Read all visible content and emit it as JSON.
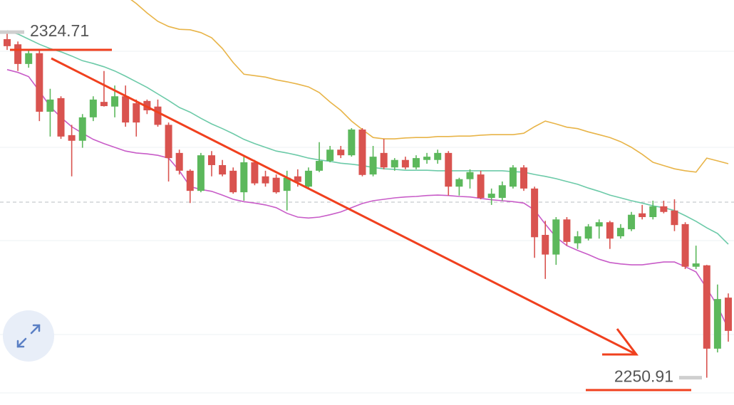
{
  "chart_data": {
    "type": "candlestick",
    "ylim": [
      2245.07,
      2331.56
    ],
    "up_color": "#5cb85c",
    "down_color": "#d9534f",
    "open": [
      2323.2,
      2322.1,
      2317.9,
      2320.2,
      2307.7,
      2310.6,
      2302.7,
      2301.5,
      2306.5,
      2309.8,
      2308.8,
      2311.0,
      2309.5,
      2310.0,
      2308.8,
      2304.9,
      2298.9,
      2295.1,
      2290.8,
      2298.4,
      2296.3,
      2295.1,
      2290.5,
      2296.9,
      2293.9,
      2293.6,
      2290.8,
      2293.9,
      2291.7,
      2295.1,
      2297.2,
      2299.6,
      2298.4,
      2303.9,
      2294.3,
      2298.9,
      2295.8,
      2297.4,
      2295.8,
      2297.4,
      2297.4,
      2298.9,
      2291.7,
      2293.3,
      2294.3,
      2289.3,
      2289.3,
      2291.7,
      2295.8,
      2291.3,
      2281.4,
      2277.2,
      2284.7,
      2279.6,
      2280.6,
      2283.2,
      2284.1,
      2281.1,
      2282.6,
      2286.0,
      2285.2,
      2287.5,
      2286.6,
      2283.7,
      2274.6,
      2274.9,
      2257.1,
      2268.0
    ],
    "high": [
      2324.71,
      2322.7,
      2320.9,
      2320.9,
      2312.6,
      2311.0,
      2304.9,
      2307.2,
      2311.0,
      2316.4,
      2313.3,
      2313.3,
      2310.3,
      2310.3,
      2310.3,
      2305.4,
      2299.6,
      2295.4,
      2298.9,
      2299.3,
      2297.4,
      2295.8,
      2298.1,
      2297.4,
      2295.1,
      2294.3,
      2295.1,
      2295.4,
      2295.8,
      2301.2,
      2300.4,
      2300.4,
      2304.2,
      2304.2,
      2300.4,
      2301.9,
      2297.8,
      2298.1,
      2298.4,
      2298.9,
      2299.6,
      2299.3,
      2293.6,
      2295.4,
      2295.1,
      2291.3,
      2292.8,
      2296.3,
      2296.3,
      2291.7,
      2284.4,
      2285.2,
      2285.2,
      2282.2,
      2283.7,
      2284.7,
      2284.4,
      2283.7,
      2286.3,
      2287.8,
      2288.7,
      2288.7,
      2289.0,
      2284.1,
      2279.1,
      2275.0,
      2270.8,
      2268.9
    ],
    "low": [
      2320.9,
      2316.4,
      2317.1,
      2305.7,
      2302.4,
      2301.9,
      2293.9,
      2300.0,
      2305.7,
      2308.8,
      2306.5,
      2304.5,
      2302.4,
      2307.2,
      2304.5,
      2292.8,
      2294.3,
      2288.2,
      2290.5,
      2293.9,
      2293.9,
      2290.2,
      2288.7,
      2292.0,
      2291.7,
      2290.2,
      2286.6,
      2291.7,
      2291.3,
      2294.8,
      2296.9,
      2297.8,
      2298.1,
      2293.9,
      2293.9,
      2295.4,
      2295.1,
      2295.4,
      2295.4,
      2296.6,
      2296.6,
      2289.8,
      2289.8,
      2291.3,
      2289.0,
      2287.8,
      2288.7,
      2291.3,
      2290.8,
      2276.5,
      2272.0,
      2275.0,
      2279.1,
      2278.4,
      2280.2,
      2280.6,
      2278.4,
      2280.6,
      2282.2,
      2284.7,
      2284.7,
      2286.0,
      2282.2,
      2274.1,
      2274.1,
      2250.91,
      2256.3,
      2258.6
    ],
    "close": [
      2321.7,
      2317.9,
      2320.2,
      2307.7,
      2310.3,
      2302.4,
      2301.5,
      2306.5,
      2310.3,
      2308.9,
      2311.0,
      2305.4,
      2305.4,
      2308.0,
      2304.9,
      2297.8,
      2295.1,
      2290.8,
      2298.4,
      2296.3,
      2294.3,
      2290.5,
      2296.9,
      2292.4,
      2292.4,
      2290.5,
      2293.6,
      2292.7,
      2295.1,
      2297.2,
      2299.6,
      2298.4,
      2303.9,
      2294.2,
      2298.1,
      2295.8,
      2297.4,
      2295.8,
      2297.8,
      2298.1,
      2298.9,
      2291.7,
      2293.3,
      2294.8,
      2289.3,
      2290.2,
      2292.0,
      2295.8,
      2291.3,
      2280.9,
      2277.2,
      2284.7,
      2279.9,
      2281.1,
      2283.2,
      2284.1,
      2280.6,
      2282.9,
      2285.7,
      2285.2,
      2287.5,
      2286.3,
      2283.5,
      2274.6,
      2275.3,
      2257.1,
      2267.7,
      2260.9
    ],
    "bands": [
      {
        "color": "#e8b448",
        "values": [
          null,
          null,
          null,
          null,
          null,
          null,
          null,
          null,
          null,
          null,
          null,
          2332.5,
          2330.8,
          2328.8,
          2327.0,
          2325.9,
          2325.3,
          2325.2,
          2324.6,
          2323.5,
          2321.2,
          2318.2,
          2315.7,
          2315.4,
          2315.1,
          2314.5,
          2314.1,
          2313.6,
          2313.0,
          2311.8,
          2309.8,
          2308.0,
          2305.7,
          2303.9,
          2302.2,
          2301.9,
          2301.9,
          2302.1,
          2302.2,
          2302.2,
          2302.4,
          2302.4,
          2302.5,
          2302.5,
          2302.7,
          2302.8,
          2302.8,
          2302.8,
          2303.1,
          2304.5,
          2305.7,
          2305.1,
          2304.4,
          2304.1,
          2303.4,
          2302.8,
          2302.2,
          2301.3,
          2300.1,
          2298.6,
          2296.9,
          2296.2,
          2295.5,
          2295.1,
          2294.8,
          2297.8,
          2297.2,
          2296.6
        ]
      },
      {
        "color": "#6ccaa8",
        "values": [
          2325.0,
          2324.3,
          2323.2,
          2322.1,
          2321.2,
          2320.5,
          2319.6,
          2318.6,
          2318.0,
          2317.3,
          2316.4,
          2315.3,
          2314.1,
          2312.9,
          2311.5,
          2310.1,
          2308.6,
          2307.6,
          2306.3,
          2305.1,
          2304.1,
          2303.0,
          2301.8,
          2300.9,
          2300.1,
          2299.3,
          2298.9,
          2298.4,
          2297.8,
          2297.4,
          2297.1,
          2296.7,
          2296.5,
          2296.2,
          2295.8,
          2295.5,
          2295.4,
          2295.2,
          2295.2,
          2295.2,
          2295.1,
          2295.1,
          2295.1,
          2295.1,
          2295.1,
          2295.1,
          2295.1,
          2294.9,
          2294.8,
          2294.3,
          2293.9,
          2293.4,
          2292.8,
          2292.2,
          2291.4,
          2290.7,
          2289.9,
          2289.3,
          2288.7,
          2288.2,
          2287.6,
          2287.2,
          2286.6,
          2285.5,
          2284.3,
          2282.9,
          2281.7,
          2279.4
        ]
      },
      {
        "color": "#c85cc8",
        "values": [
          2316.7,
          2316.1,
          2315.2,
          2312.1,
          2308.8,
          2306.5,
          2304.5,
          2303.1,
          2301.8,
          2300.9,
          2300.1,
          2299.3,
          2298.9,
          2298.7,
          2298.4,
          2297.8,
          2295.1,
          2291.7,
          2291.1,
          2290.7,
          2289.9,
          2289.0,
          2288.5,
          2288.2,
          2287.8,
          2287.2,
          2286.0,
          2285.2,
          2285.0,
          2285.2,
          2285.7,
          2286.3,
          2287.2,
          2288.1,
          2288.7,
          2289.0,
          2289.3,
          2289.5,
          2289.6,
          2289.8,
          2289.9,
          2289.8,
          2289.6,
          2289.5,
          2289.2,
          2288.9,
          2288.7,
          2288.5,
          2288.2,
          2286.7,
          2283.7,
          2280.9,
          2279.1,
          2278.1,
          2277.2,
          2276.2,
          2275.5,
          2275.2,
          2275.0,
          2275.0,
          2275.3,
          2275.6,
          2275.6,
          2274.6,
          2273.5,
          2270.0,
          2266.2,
          2261.3
        ]
      }
    ],
    "max_label": 2324.71,
    "min_label": 2250.91
  }
}
